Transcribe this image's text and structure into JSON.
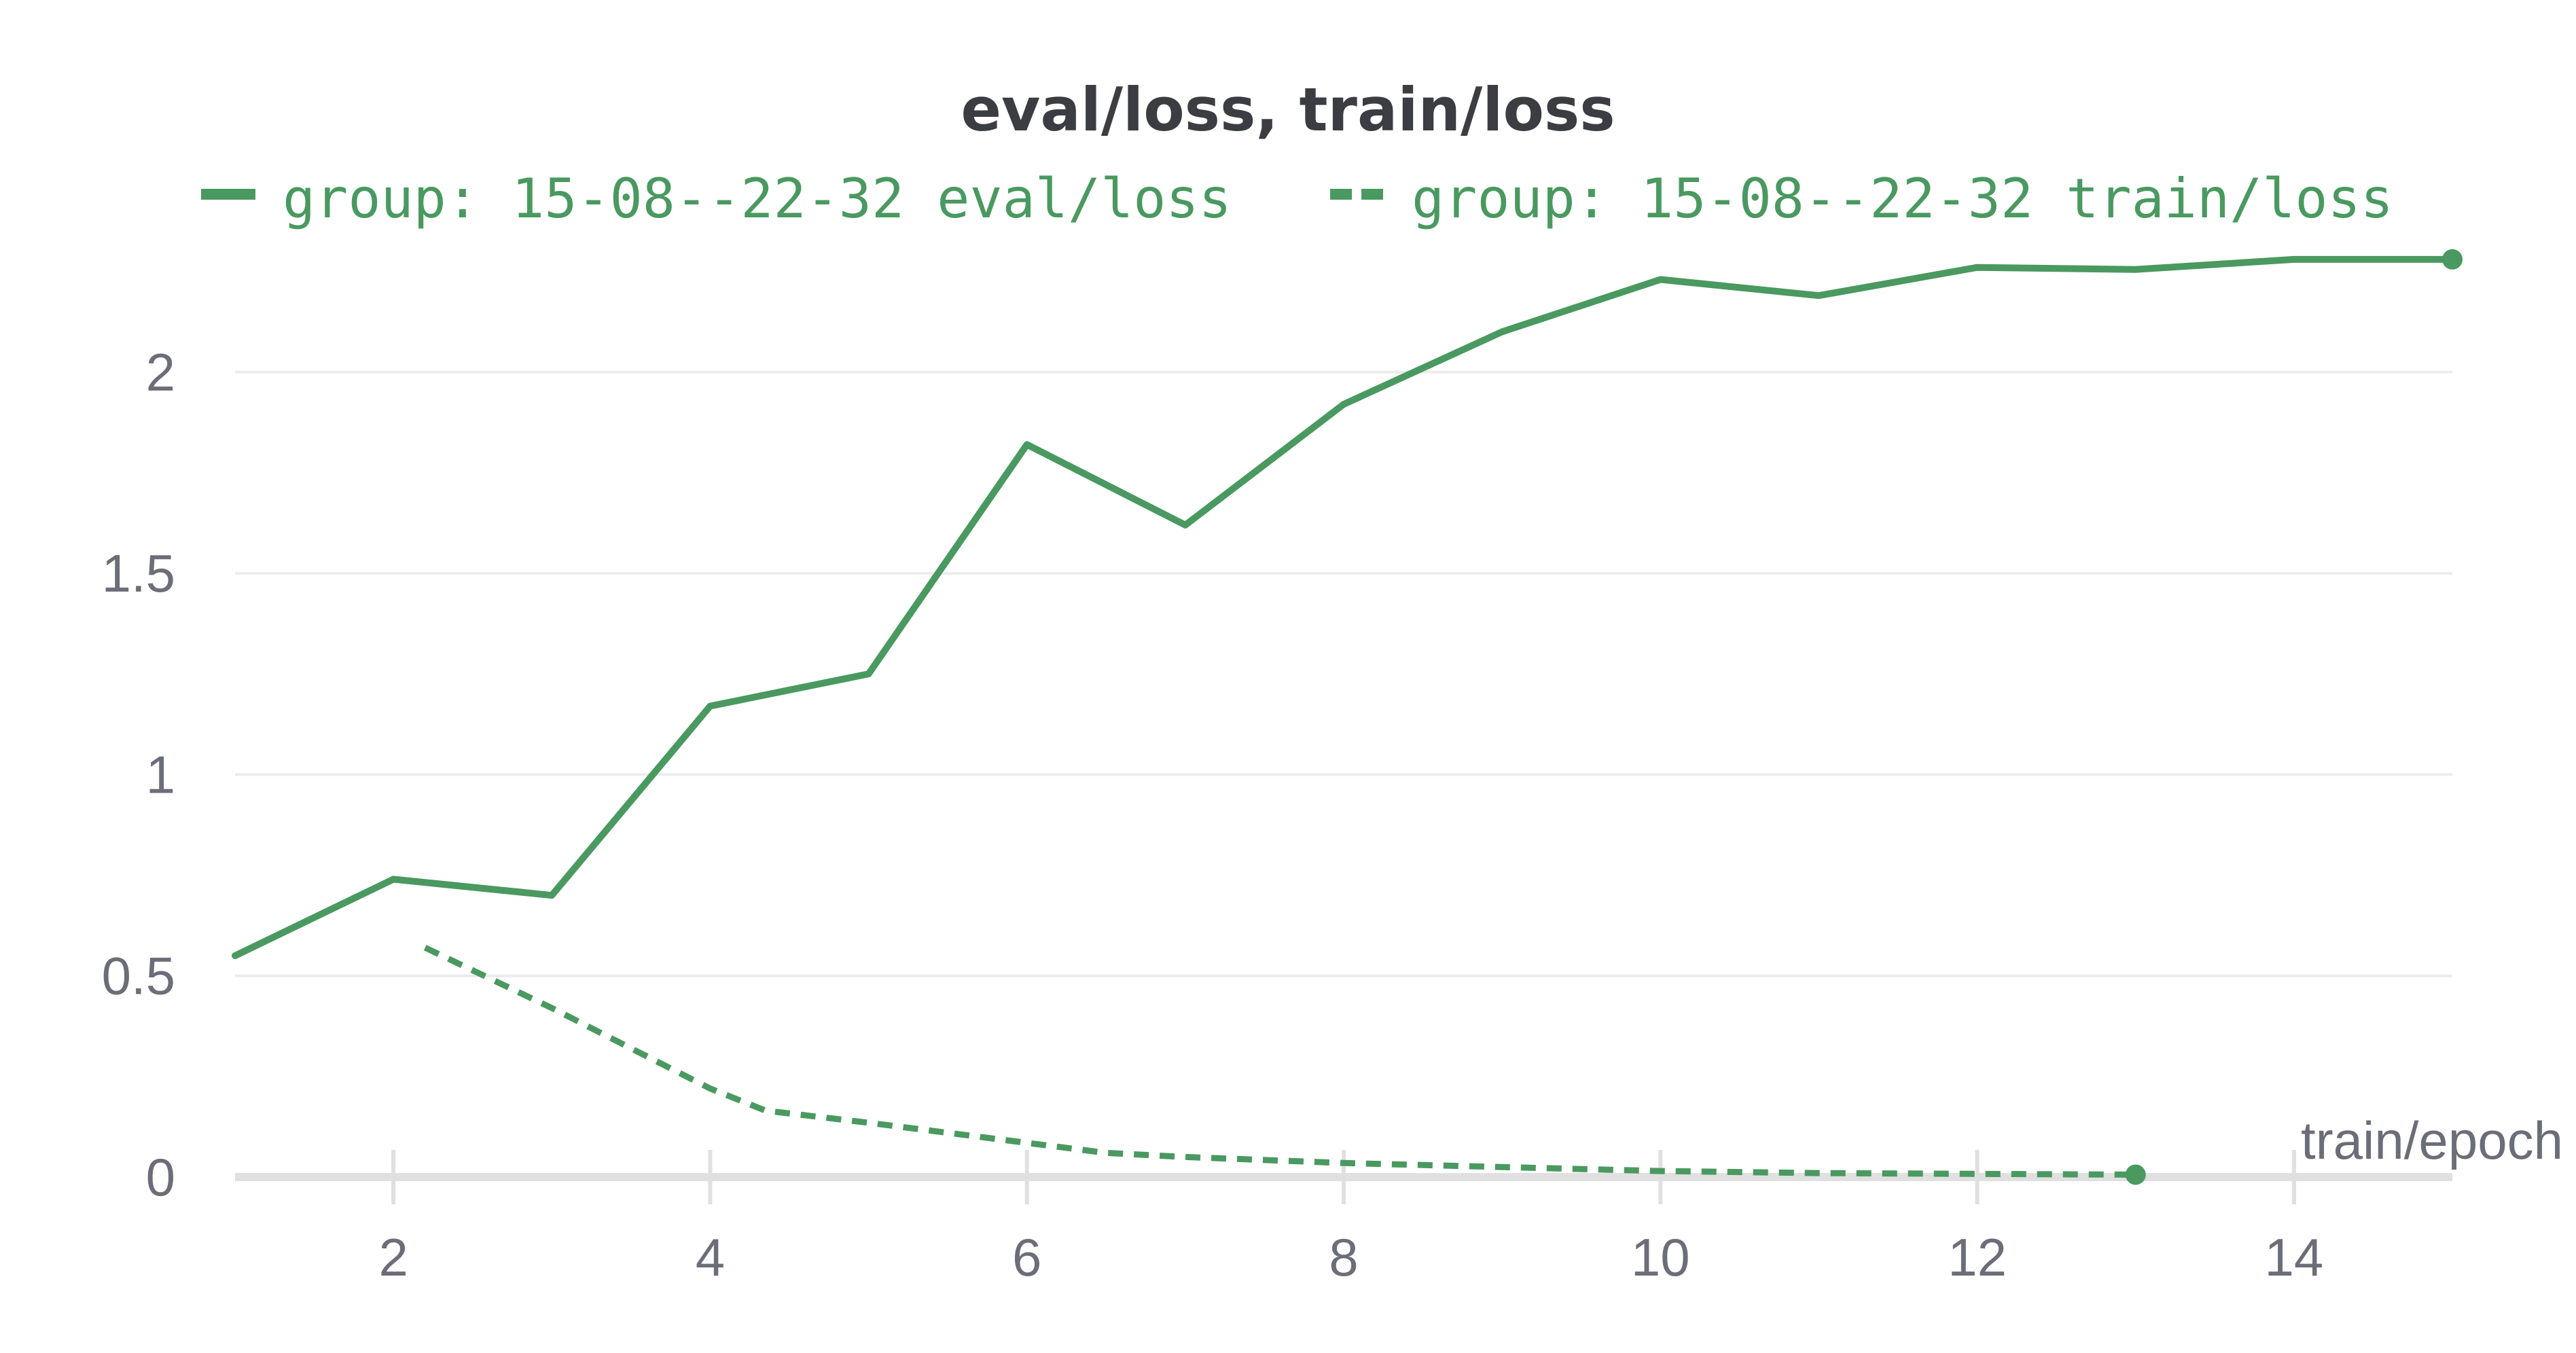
{
  "chart_data": {
    "type": "line",
    "title": "eval/loss, train/loss",
    "xlabel": "train/epoch",
    "ylabel": "",
    "xlim": [
      1,
      15
    ],
    "ylim": [
      0,
      2.3
    ],
    "xticks": [
      2,
      4,
      6,
      8,
      10,
      12,
      14
    ],
    "yticks": [
      0,
      0.5,
      1,
      1.5,
      2
    ],
    "ytick_labels": [
      "0",
      "0.5",
      "1",
      "1.5",
      "2"
    ],
    "xtick_labels": [
      "2",
      "4",
      "6",
      "8",
      "10",
      "12",
      "14"
    ],
    "grid": true,
    "legend_position": "top",
    "series": [
      {
        "name": "group: 15-08--22-32 eval/loss",
        "style": "solid",
        "color": "#4a9960",
        "x": [
          1,
          2,
          3,
          4,
          5,
          6,
          7,
          8,
          9,
          10,
          11,
          12,
          13,
          14,
          15
        ],
        "y": [
          0.55,
          0.74,
          0.7,
          1.17,
          1.25,
          1.82,
          1.62,
          1.92,
          2.1,
          2.23,
          2.19,
          2.26,
          2.255,
          2.28,
          2.28
        ]
      },
      {
        "name": "group: 15-08--22-32 train/loss",
        "style": "dashed",
        "color": "#4a9960",
        "x": [
          2.2,
          3.0,
          4.0,
          4.35,
          5.0,
          6.0,
          6.5,
          7.0,
          8.0,
          9.0,
          10.0,
          11.0,
          12.0,
          13.0
        ],
        "y": [
          0.57,
          0.42,
          0.22,
          0.165,
          0.135,
          0.085,
          0.06,
          0.05,
          0.035,
          0.025,
          0.015,
          0.01,
          0.008,
          0.006
        ]
      }
    ]
  }
}
